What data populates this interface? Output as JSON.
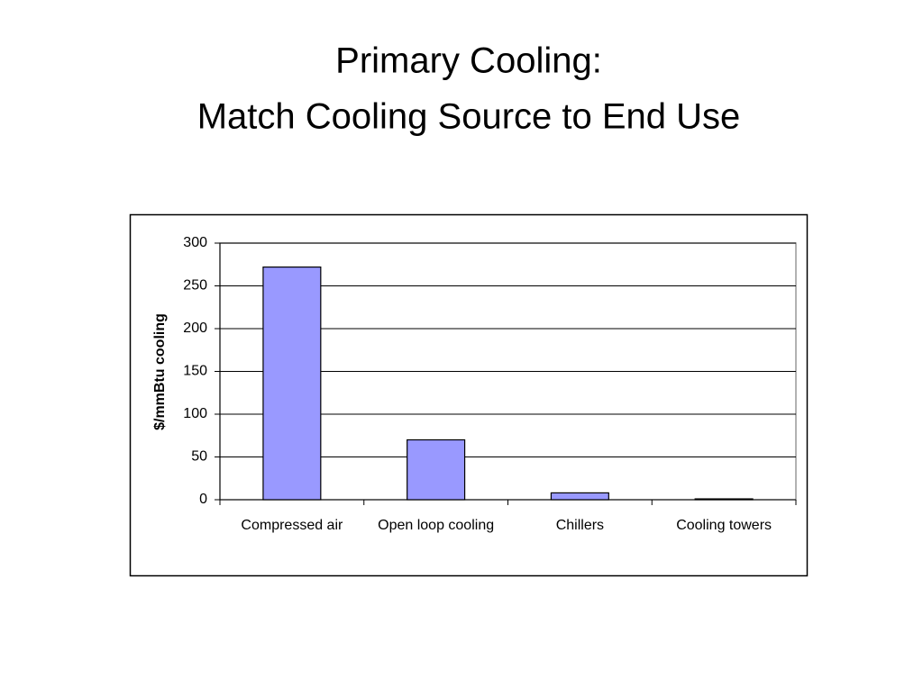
{
  "chart_data": {
    "type": "bar",
    "title": [
      "Primary Cooling:",
      "Match Cooling Source to End Use"
    ],
    "y_label": "$/mmBtu cooling",
    "categories": [
      "Compressed air",
      "Open loop cooling",
      "Chillers",
      "Cooling towers"
    ],
    "values": [
      272,
      70,
      8,
      1
    ],
    "color": "#9999ff",
    "ylim": [
      0,
      300
    ],
    "yticks": [
      0,
      50,
      100,
      150,
      200,
      250,
      300
    ],
    "grid": true
  }
}
